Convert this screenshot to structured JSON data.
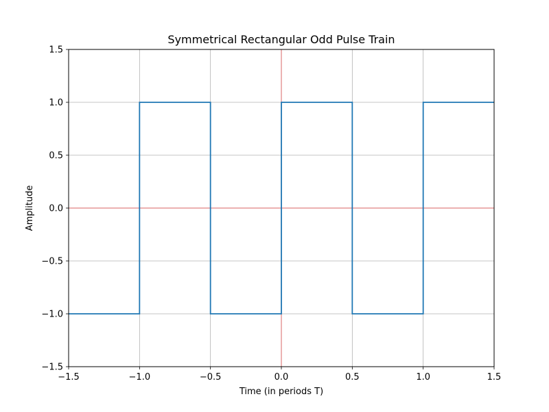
{
  "chart_data": {
    "type": "line",
    "title": "Symmetrical Rectangular Odd Pulse Train",
    "xlabel": "Time (in periods T)",
    "ylabel": "Amplitude",
    "xlim": [
      -1.5,
      1.5
    ],
    "ylim": [
      -1.5,
      1.5
    ],
    "xticks": [
      -1.5,
      -1.0,
      -0.5,
      0.0,
      0.5,
      1.0,
      1.5
    ],
    "yticks": [
      -1.5,
      -1.0,
      -0.5,
      0.0,
      0.5,
      1.0,
      1.5
    ],
    "xtick_labels": [
      "−1.5",
      "−1.0",
      "−0.5",
      "0.0",
      "0.5",
      "1.0",
      "1.5"
    ],
    "ytick_labels": [
      "−1.5",
      "−1.0",
      "−0.5",
      "0.0",
      "0.5",
      "1.0",
      "1.5"
    ],
    "grid": true,
    "series": [
      {
        "color": "#1f77b4",
        "x": [
          -1.5,
          -1.0,
          -1.0,
          -0.5,
          -0.5,
          0.0,
          0.0,
          0.5,
          0.5,
          1.0,
          1.0,
          1.5
        ],
        "y": [
          -1,
          -1,
          1,
          1,
          -1,
          -1,
          1,
          1,
          -1,
          -1,
          1,
          1
        ]
      }
    ],
    "reference_lines": {
      "color": "#e08080",
      "horizontal_y": 0,
      "vertical_x": 0
    }
  }
}
